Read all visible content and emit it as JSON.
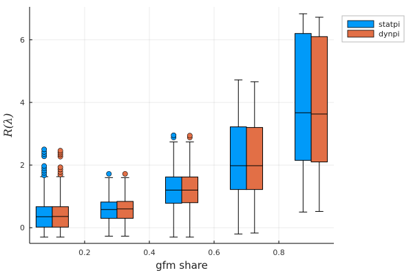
{
  "chart_data": {
    "type": "box",
    "xlabel": "gfm share",
    "ylabel": "R(λ)",
    "xlim": [
      0.03,
      0.97
    ],
    "ylim": [
      -0.5,
      7.05
    ],
    "xticks": [
      0.2,
      0.4,
      0.6,
      0.8
    ],
    "xtick_labels": [
      "0.2",
      "0.4",
      "0.6",
      "0.8"
    ],
    "yticks": [
      0,
      2,
      4,
      6
    ],
    "ytick_labels": [
      "0",
      "2",
      "4",
      "6"
    ],
    "grid": true,
    "legend_position": "top-right",
    "categories": [
      0.1,
      0.3,
      0.5,
      0.7,
      0.9
    ],
    "series": [
      {
        "name": "statpi",
        "color": "#009af9",
        "boxes": [
          {
            "x": 0.1,
            "whisker_low": -0.3,
            "q1": 0.02,
            "median": 0.35,
            "q3": 0.67,
            "whisker_high": 1.63,
            "outliers": [
              1.67,
              1.75,
              1.82,
              1.9,
              1.97,
              2.28,
              2.35,
              2.42,
              2.5
            ]
          },
          {
            "x": 0.3,
            "whisker_low": -0.27,
            "q1": 0.3,
            "median": 0.58,
            "q3": 0.82,
            "whisker_high": 1.6,
            "outliers": [
              1.72
            ]
          },
          {
            "x": 0.5,
            "whisker_low": -0.3,
            "q1": 0.78,
            "median": 1.2,
            "q3": 1.62,
            "whisker_high": 2.74,
            "outliers": [
              2.88,
              2.95
            ]
          },
          {
            "x": 0.7,
            "whisker_low": -0.2,
            "q1": 1.22,
            "median": 1.98,
            "q3": 3.22,
            "whisker_high": 4.72,
            "outliers": []
          },
          {
            "x": 0.9,
            "whisker_low": 0.5,
            "q1": 2.15,
            "median": 3.67,
            "q3": 6.2,
            "whisker_high": 6.83,
            "outliers": []
          }
        ]
      },
      {
        "name": "dynpi",
        "color": "#e26f46",
        "boxes": [
          {
            "x": 0.1,
            "whisker_low": -0.3,
            "q1": 0.02,
            "median": 0.36,
            "q3": 0.67,
            "whisker_high": 1.63,
            "outliers": [
              1.7,
              1.78,
              1.86,
              1.93,
              2.27,
              2.34,
              2.4,
              2.46
            ]
          },
          {
            "x": 0.3,
            "whisker_low": -0.27,
            "q1": 0.3,
            "median": 0.6,
            "q3": 0.84,
            "whisker_high": 1.6,
            "outliers": [
              1.72
            ]
          },
          {
            "x": 0.5,
            "whisker_low": -0.3,
            "q1": 0.8,
            "median": 1.2,
            "q3": 1.62,
            "whisker_high": 2.74,
            "outliers": [
              2.88,
              2.94
            ]
          },
          {
            "x": 0.7,
            "whisker_low": -0.17,
            "q1": 1.22,
            "median": 1.98,
            "q3": 3.2,
            "whisker_high": 4.66,
            "outliers": []
          },
          {
            "x": 0.9,
            "whisker_low": 0.52,
            "q1": 2.1,
            "median": 3.63,
            "q3": 6.1,
            "whisker_high": 6.72,
            "outliers": []
          }
        ]
      }
    ]
  }
}
